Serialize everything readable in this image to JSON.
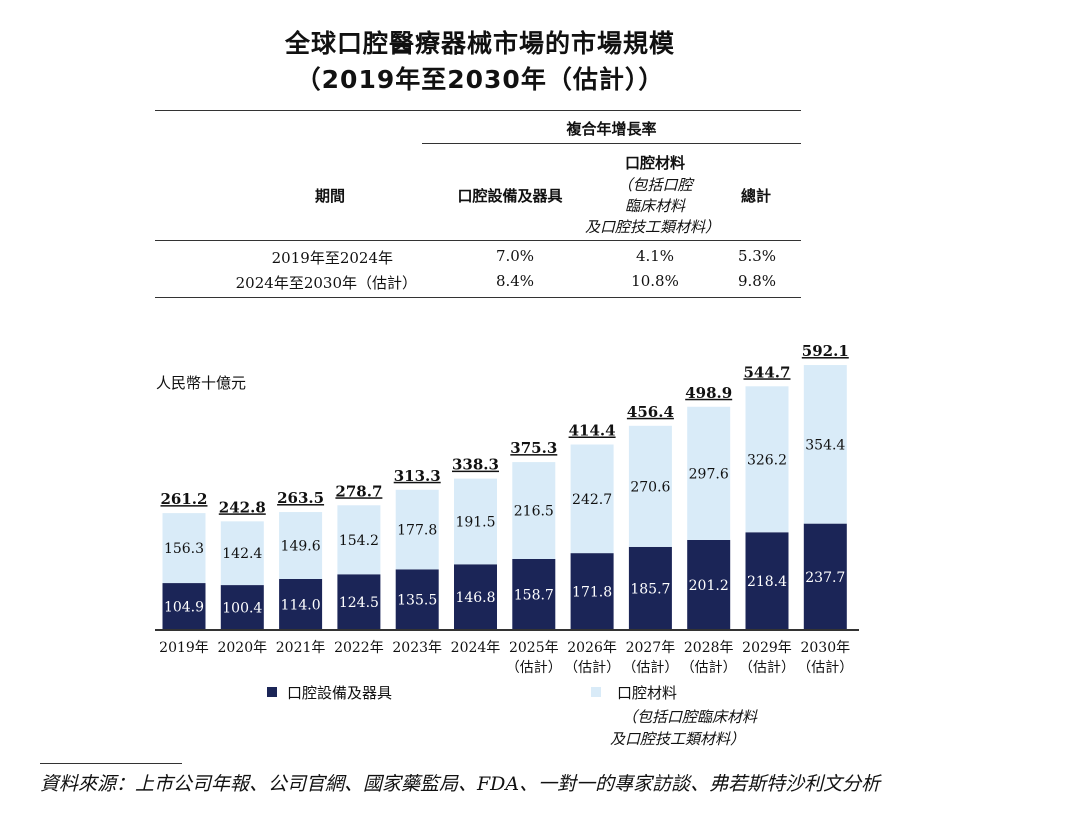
{
  "title_line1": "全球口腔醫療器械市場的市場規模",
  "title_line2": "（2019年至2030年（估計））",
  "cagr_table": {
    "group_header": "複合年增長率",
    "period_header": "期間",
    "col_equipment": "口腔設備及器具",
    "col_materials": "口腔材料",
    "col_materials_sub1": "（包括口腔",
    "col_materials_sub2": "臨床材料",
    "col_materials_sub3": "及口腔技工類材料）",
    "col_total": "總計",
    "rows": [
      {
        "period": "2019年至2024年",
        "equipment": "7.0%",
        "materials": "4.1%",
        "total": "5.3%"
      },
      {
        "period": "2024年至2030年（估計）",
        "equipment": "8.4%",
        "materials": "10.8%",
        "total": "9.8%"
      }
    ]
  },
  "unit_label": "人民幣十億元",
  "colors": {
    "equipment": "#1b2557",
    "materials": "#d9ebf8",
    "axis": "#333333"
  },
  "chart_data": {
    "type": "bar",
    "stacked": true,
    "title": "全球口腔醫療器械市場的市場規模",
    "ylabel": "人民幣十億元",
    "categories": [
      "2019年",
      "2020年",
      "2021年",
      "2022年",
      "2023年",
      "2024年",
      "2025年",
      "2026年",
      "2027年",
      "2028年",
      "2029年",
      "2030年"
    ],
    "category_sublabels": [
      "",
      "",
      "",
      "",
      "",
      "",
      "（估計）",
      "（估計）",
      "（估計）",
      "（估計）",
      "（估計）",
      "（估計）"
    ],
    "series": [
      {
        "name": "口腔設備及器具",
        "values": [
          104.9,
          100.4,
          114.0,
          124.5,
          135.5,
          146.8,
          158.7,
          171.8,
          185.7,
          201.2,
          218.4,
          237.7
        ]
      },
      {
        "name": "口腔材料",
        "values": [
          156.3,
          142.4,
          149.6,
          154.2,
          177.8,
          191.5,
          216.5,
          242.7,
          270.6,
          297.6,
          326.2,
          354.4
        ]
      }
    ],
    "totals": [
      261.2,
      242.8,
      263.5,
      278.7,
      313.3,
      338.3,
      375.3,
      414.4,
      456.4,
      498.9,
      544.7,
      592.1
    ],
    "ylim": [
      0,
      600
    ]
  },
  "legend": {
    "equipment": "口腔設備及器具",
    "materials": "口腔材料",
    "materials_sub1": "（包括口腔臨床材料",
    "materials_sub2": "及口腔技工類材料）"
  },
  "source_text": "資料來源：上市公司年報、公司官網、國家藥監局、FDA、一對一的專家訪談、弗若斯特沙利文分析"
}
